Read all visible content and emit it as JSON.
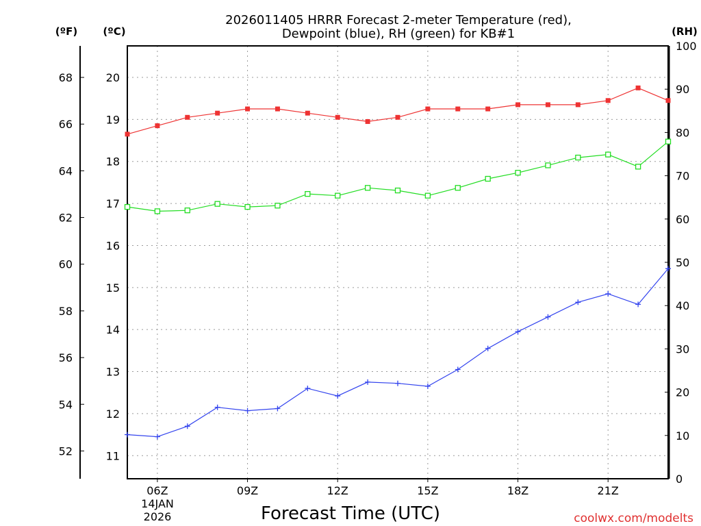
{
  "chart_data": {
    "type": "line",
    "title_line1": "2026011405 HRRR Forecast 2-meter Temperature (red),",
    "title_line2": "Dewpoint (blue), RH (green) for KB#1",
    "xlabel": "Forecast Time (UTC)",
    "x_hours": [
      5,
      6,
      7,
      8,
      9,
      10,
      11,
      12,
      13,
      14,
      15,
      16,
      17,
      18,
      19,
      20,
      21,
      22,
      23
    ],
    "x_range": [
      5,
      23
    ],
    "x_ticks": [
      {
        "hour": 6,
        "label": "06Z"
      },
      {
        "hour": 9,
        "label": "09Z"
      },
      {
        "hour": 12,
        "label": "12Z"
      },
      {
        "hour": 15,
        "label": "15Z"
      },
      {
        "hour": 18,
        "label": "18Z"
      },
      {
        "hour": 21,
        "label": "21Z"
      }
    ],
    "date_label": "14JAN",
    "year_label": "2026",
    "left_axis_c": {
      "unit": "(ºC)",
      "range": [
        10.45,
        20.75
      ],
      "ticks": [
        "11",
        "12",
        "13",
        "14",
        "15",
        "16",
        "17",
        "18",
        "19",
        "20"
      ]
    },
    "left_axis_f": {
      "unit": "(ºF)",
      "ticks": [
        "52",
        "54",
        "56",
        "58",
        "60",
        "62",
        "64",
        "66",
        "68"
      ]
    },
    "right_axis_rh": {
      "unit": "(RH)",
      "range": [
        0,
        100
      ],
      "ticks": [
        "0",
        "10",
        "20",
        "30",
        "40",
        "50",
        "60",
        "70",
        "80",
        "90",
        "100"
      ]
    },
    "grid": true,
    "series": [
      {
        "name": "Temperature",
        "axis": "C",
        "color": "#ee3333",
        "marker": "filled-square",
        "values": [
          18.65,
          18.85,
          19.05,
          19.15,
          19.25,
          19.25,
          19.15,
          19.05,
          18.95,
          19.05,
          19.25,
          19.25,
          19.25,
          19.35,
          19.35,
          19.35,
          19.45,
          19.75,
          19.45
        ]
      },
      {
        "name": "Dewpoint",
        "axis": "C",
        "color": "#3344ee",
        "marker": "plus",
        "values": [
          11.5,
          11.45,
          11.7,
          12.15,
          12.07,
          12.12,
          12.6,
          12.42,
          12.75,
          12.72,
          12.65,
          13.05,
          13.55,
          13.95,
          14.3,
          14.65,
          14.85,
          14.6,
          15.45
        ]
      },
      {
        "name": "RH",
        "axis": "RH",
        "color": "#22dd22",
        "marker": "open-square",
        "values": [
          62.8,
          61.8,
          62.0,
          63.5,
          62.8,
          63.1,
          65.8,
          65.4,
          67.2,
          66.6,
          65.4,
          67.2,
          69.3,
          70.7,
          72.4,
          74.2,
          74.9,
          72.1,
          77.9
        ]
      }
    ]
  },
  "credit": "coolwx.com/modelts"
}
